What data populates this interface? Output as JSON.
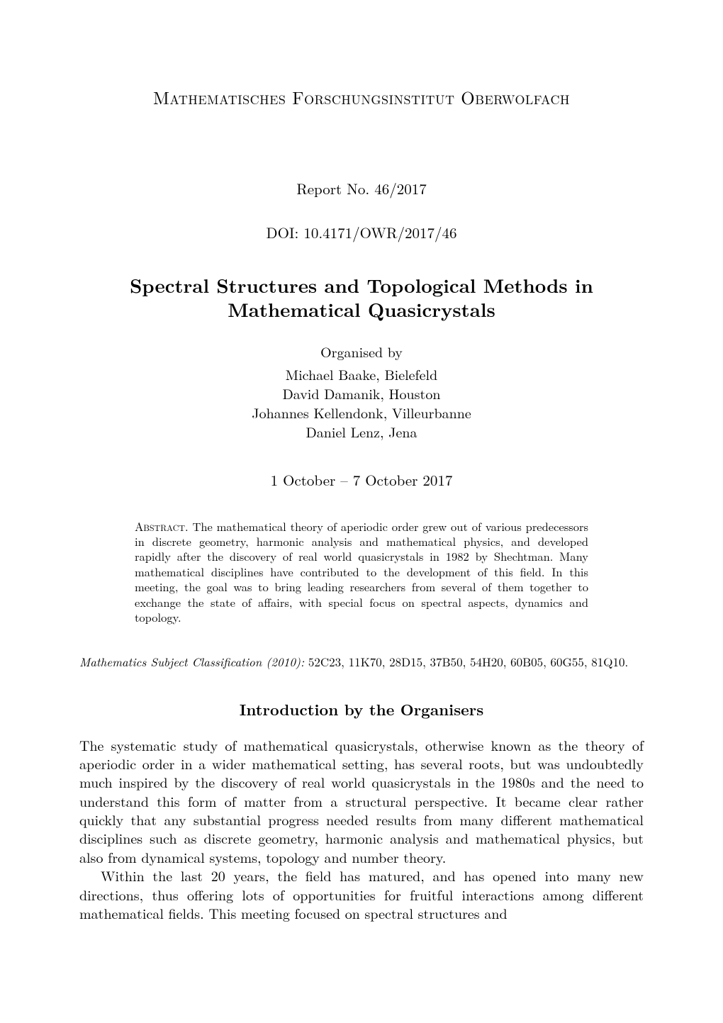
{
  "colors": {
    "background": "#ffffff",
    "text": "#000000"
  },
  "typography": {
    "base_font": "Latin Modern Roman / Computer Modern serif",
    "institute_fontsize_pt": 19,
    "report_doi_fontsize_pt": 16,
    "title_fontsize_pt": 20,
    "abstract_fontsize_pt": 12,
    "body_fontsize_pt": 15,
    "msc_fontsize_pt": 12
  },
  "header": {
    "institute": "Mathematisches Forschungsinstitut Oberwolfach",
    "report_no": "Report No. 46/2017",
    "doi": "DOI: 10.4171/OWR/2017/46"
  },
  "title": {
    "line1": "Spectral Structures and Topological Methods in",
    "line2": "Mathematical Quasicrystals"
  },
  "organised": {
    "label": "Organised by",
    "people": [
      "Michael Baake, Bielefeld",
      "David Damanik, Houston",
      "Johannes Kellendonk, Villeurbanne",
      "Daniel Lenz, Jena"
    ]
  },
  "dates": "1 October – 7 October 2017",
  "abstract": {
    "label": "Abstract.",
    "text": "The mathematical theory of aperiodic order grew out of various predecessors in discrete geometry, harmonic analysis and mathematical physics, and developed rapidly after the discovery of real world quasicrystals in 1982 by Shechtman. Many mathematical disciplines have contributed to the development of this field. In this meeting, the goal was to bring leading researchers from several of them together to exchange the state of affairs, with special focus on spectral aspects, dynamics and topology."
  },
  "msc": {
    "label": "Mathematics Subject Classification (2010):",
    "codes": "52C23, 11K70, 28D15, 37B50, 54H20, 60B05, 60G55, 81Q10."
  },
  "intro": {
    "heading": "Introduction by the Organisers",
    "paragraphs": [
      "The systematic study of mathematical quasicrystals, otherwise known as the theory of aperiodic order in a wider mathematical setting, has several roots, but was undoubtedly much inspired by the discovery of real world quasicrystals in the 1980s and the need to understand this form of matter from a structural perspective. It became clear rather quickly that any substantial progress needed results from many different mathematical disciplines such as discrete geometry, harmonic analysis and mathematical physics, but also from dynamical systems, topology and number theory.",
      "Within the last 20 years, the field has matured, and has opened into many new directions, thus offering lots of opportunities for fruitful interactions among different mathematical fields. This meeting focused on spectral structures and"
    ]
  }
}
